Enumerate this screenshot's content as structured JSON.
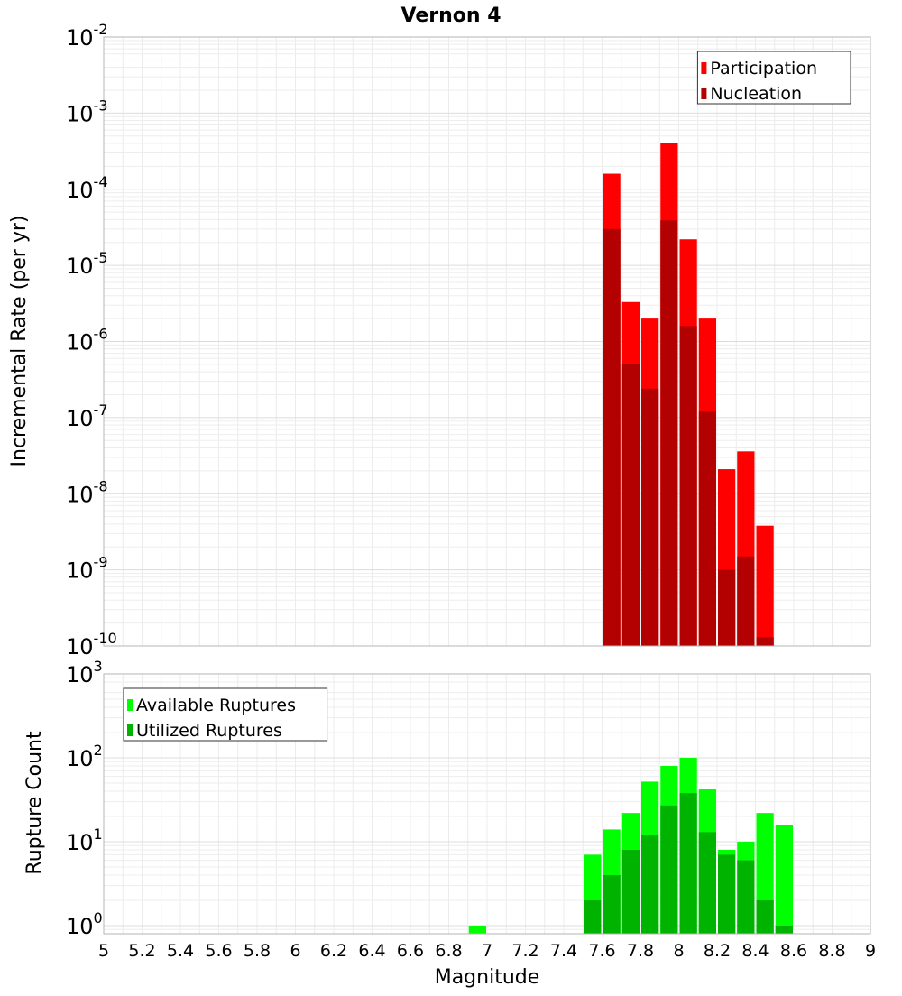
{
  "chart_data": [
    {
      "type": "bar",
      "title": "Vernon 4",
      "xlabel": "",
      "ylabel": "Incremental Rate (per yr)",
      "xlim": [
        5,
        9
      ],
      "ylim": [
        1e-10,
        0.01
      ],
      "yscale": "log",
      "bar_width": 0.1,
      "grid": true,
      "legend_position": "top-right",
      "series": [
        {
          "name": "Participation",
          "color": "#ff0000",
          "x": [
            7.65,
            7.75,
            7.85,
            7.95,
            8.05,
            8.15,
            8.25,
            8.35,
            8.45
          ],
          "values": [
            0.00016,
            3.3e-06,
            2e-06,
            0.00041,
            2.2e-05,
            2e-06,
            2.1e-08,
            3.6e-08,
            3.8e-09
          ]
        },
        {
          "name": "Nucleation",
          "color": "#b30000",
          "x": [
            7.65,
            7.75,
            7.85,
            7.95,
            8.05,
            8.15,
            8.25,
            8.35,
            8.45
          ],
          "values": [
            3e-05,
            5e-07,
            2.4e-07,
            3.9e-05,
            1.6e-06,
            1.2e-07,
            1e-09,
            1.5e-09,
            1.3e-10
          ]
        }
      ]
    },
    {
      "type": "bar",
      "title": "",
      "xlabel": "Magnitude",
      "ylabel": "Rupture Count",
      "xlim": [
        5,
        9
      ],
      "ylim": [
        0.8,
        1000
      ],
      "yscale": "log",
      "bar_width": 0.1,
      "grid": true,
      "legend_position": "top-left",
      "series": [
        {
          "name": "Available Ruptures",
          "color": "#00ff00",
          "x": [
            6.95,
            7.55,
            7.65,
            7.75,
            7.85,
            7.95,
            8.05,
            8.15,
            8.25,
            8.35,
            8.45,
            8.55
          ],
          "values": [
            1,
            7,
            14,
            22,
            52,
            80,
            100,
            42,
            8,
            10,
            22,
            16
          ]
        },
        {
          "name": "Utilized Ruptures",
          "color": "#00b300",
          "x": [
            7.55,
            7.65,
            7.75,
            7.85,
            7.95,
            8.05,
            8.15,
            8.25,
            8.35,
            8.45,
            8.55
          ],
          "values": [
            2,
            4,
            8,
            12,
            27,
            38,
            13,
            7,
            6,
            2,
            1
          ]
        }
      ]
    }
  ],
  "axes": {
    "top_y_ticks": [
      {
        "base": "10",
        "exp": "-2"
      },
      {
        "base": "10",
        "exp": "-3"
      },
      {
        "base": "10",
        "exp": "-4"
      },
      {
        "base": "10",
        "exp": "-5"
      },
      {
        "base": "10",
        "exp": "-6"
      },
      {
        "base": "10",
        "exp": "-7"
      },
      {
        "base": "10",
        "exp": "-8"
      },
      {
        "base": "10",
        "exp": "-9"
      },
      {
        "base": "10",
        "exp": "-10"
      }
    ],
    "bottom_y_ticks": [
      {
        "base": "10",
        "exp": "3"
      },
      {
        "base": "10",
        "exp": "2"
      },
      {
        "base": "10",
        "exp": "1"
      },
      {
        "base": "10",
        "exp": "0"
      }
    ],
    "x_ticks": [
      "5",
      "5.2",
      "5.4",
      "5.6",
      "5.8",
      "6",
      "6.2",
      "6.4",
      "6.6",
      "6.8",
      "7",
      "7.2",
      "7.4",
      "7.6",
      "7.8",
      "8",
      "8.2",
      "8.4",
      "8.6",
      "8.8",
      "9"
    ]
  }
}
